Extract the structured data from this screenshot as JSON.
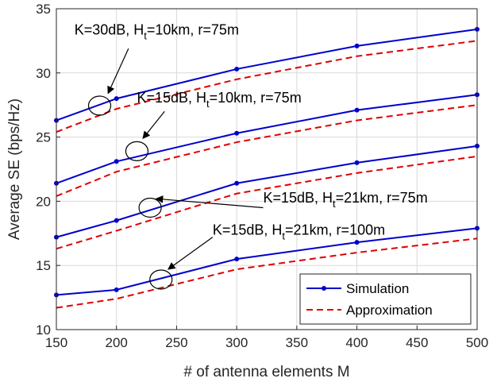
{
  "chart_data": {
    "type": "line",
    "title": "",
    "xlabel": "# of antenna elements M",
    "ylabel": "Average SE (bps/Hz)",
    "xlim": [
      150,
      500
    ],
    "ylim": [
      10,
      35
    ],
    "xticks": [
      150,
      200,
      250,
      300,
      350,
      400,
      450,
      500
    ],
    "yticks": [
      10,
      15,
      20,
      25,
      30,
      35
    ],
    "grid": true,
    "legend_position": "bottom-right",
    "x": [
      150,
      200,
      300,
      400,
      500
    ],
    "legend": [
      "Simulation",
      "Approximation"
    ],
    "colors": {
      "simulation": "#0000cc",
      "approximation": "#e00000",
      "grid": "#d9d9d9",
      "axis": "#262626"
    },
    "curves": [
      {
        "label_main": "K=30dB, H",
        "label_sub": "t",
        "label_rest": "=10km, r=75m",
        "simulation": [
          26.3,
          28.0,
          30.3,
          32.1,
          33.4
        ],
        "approximation": [
          25.4,
          27.2,
          29.5,
          31.3,
          32.5
        ]
      },
      {
        "label_main": "K=15dB, H",
        "label_sub": "t",
        "label_rest": "=10km, r=75m",
        "simulation": [
          21.4,
          23.1,
          25.3,
          27.1,
          28.3
        ],
        "approximation": [
          20.4,
          22.3,
          24.6,
          26.3,
          27.5
        ]
      },
      {
        "label_main": "K=15dB, H",
        "label_sub": "t",
        "label_rest": "=21km, r=75m",
        "simulation": [
          17.2,
          18.5,
          21.4,
          23.0,
          24.3
        ],
        "approximation": [
          16.3,
          17.7,
          20.6,
          22.2,
          23.5
        ]
      },
      {
        "label_main": "K=15dB, H",
        "label_sub": "t",
        "label_rest": "=21km, r=100m",
        "simulation": [
          12.7,
          13.1,
          15.5,
          16.8,
          17.9
        ],
        "approximation": [
          11.7,
          12.4,
          14.7,
          16.0,
          17.1
        ]
      }
    ]
  }
}
